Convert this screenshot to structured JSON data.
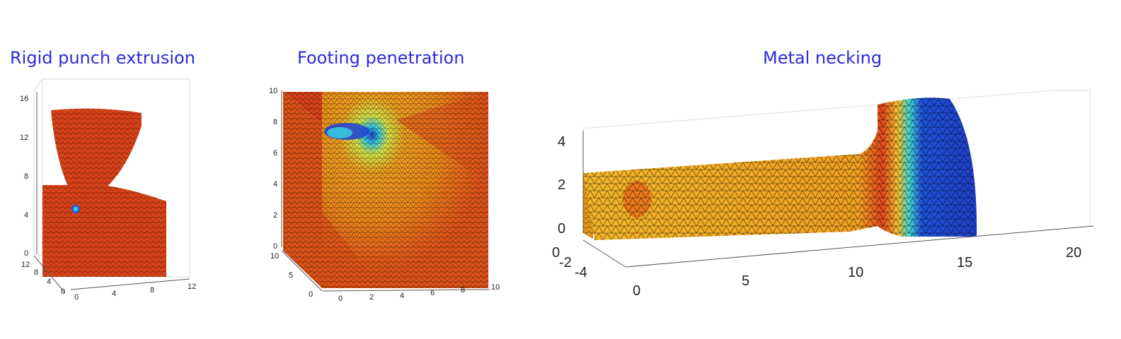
{
  "panels": [
    {
      "title": "Rigid punch extrusion",
      "z_ticks": [
        "0",
        "4",
        "8",
        "12",
        "16"
      ],
      "y_ticks": [
        "0",
        "4",
        "8",
        "12"
      ],
      "x_ticks": [
        "0",
        "4",
        "8",
        "12"
      ]
    },
    {
      "title": "Footing penetration",
      "z_ticks": [
        "0",
        "2",
        "4",
        "6",
        "8",
        "10"
      ],
      "y_ticks": [
        "0",
        "5",
        "10"
      ],
      "x_ticks": [
        "0",
        "2",
        "4",
        "6",
        "8",
        "10"
      ]
    },
    {
      "title": "Metal necking",
      "z_ticks": [
        "0",
        "2",
        "4"
      ],
      "y_ticks": [
        "-4",
        "-2",
        "0"
      ],
      "x_ticks": [
        "0",
        "5",
        "10",
        "15",
        "20"
      ]
    }
  ],
  "colors": {
    "title": "#2b2bd9",
    "mesh_red": "#e0451a",
    "mesh_orange": "#f08a1c",
    "mesh_yellow": "#f2b52a",
    "mesh_blue": "#1f4fd8",
    "mesh_cyan": "#3ad6d0",
    "mesh_lines": "#000000"
  }
}
